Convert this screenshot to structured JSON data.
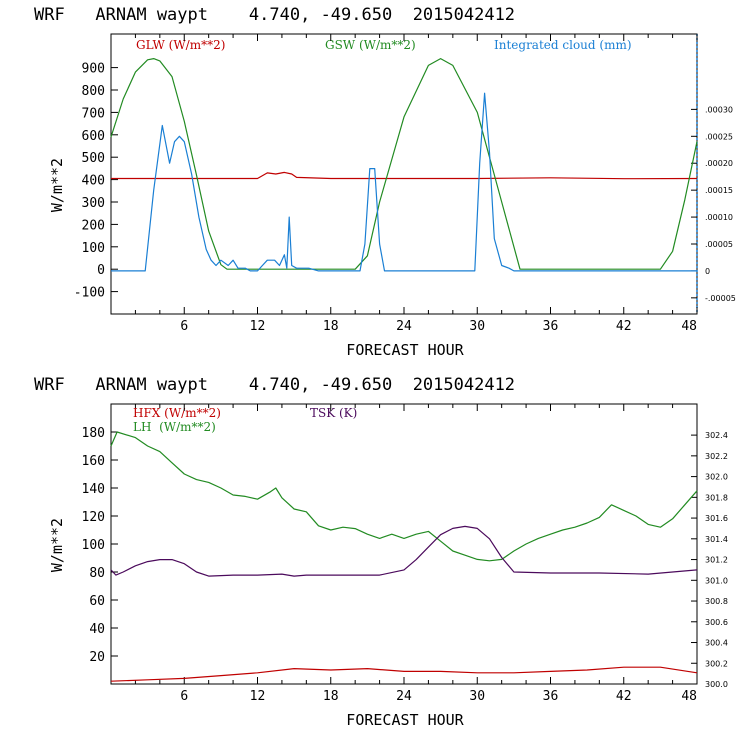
{
  "colors": {
    "red": "#c00000",
    "green": "#228b22",
    "blue": "#1a7fd4",
    "purple": "#4b0a5c"
  },
  "chart_data": [
    {
      "type": "line",
      "title": "WRF   ARNAM waypt    4.740, -49.650  2015042412",
      "xlabel": "FORECAST HOUR",
      "ylabel": "W/m**2",
      "xlim": [
        0,
        48
      ],
      "ylim": [
        -200,
        1050
      ],
      "y2lim": [
        -8e-05,
        0.00044
      ],
      "x_ticks": [
        6,
        12,
        18,
        24,
        30,
        36,
        42,
        48
      ],
      "y_ticks": [
        -100,
        0,
        100,
        200,
        300,
        400,
        500,
        600,
        700,
        800,
        900
      ],
      "y2_ticks": [
        -5e-05,
        0,
        5e-05,
        0.0001,
        0.00015,
        0.0002,
        0.00025,
        0.0003
      ],
      "y2_tick_labels": [
        "-.00005",
        "0",
        ".00005",
        ".00010",
        ".00015",
        ".00020",
        ".00025",
        ".00030"
      ],
      "series": [
        {
          "name": "GLW (W/m**2)",
          "color": "#c00000",
          "axis": "left",
          "x": [
            0,
            6,
            12,
            12.8,
            13.5,
            14.2,
            14.8,
            15.2,
            18,
            24,
            30,
            36,
            42,
            48
          ],
          "y": [
            405,
            405,
            405,
            430,
            425,
            432,
            425,
            410,
            405,
            405,
            405,
            408,
            404,
            405
          ]
        },
        {
          "name": "GSW (W/m**2)",
          "color": "#228b22",
          "axis": "left",
          "x": [
            0,
            1,
            2,
            3,
            3.5,
            4,
            5,
            6,
            7,
            8,
            9,
            9.5,
            20,
            21,
            22,
            24,
            26,
            27,
            28,
            30,
            32,
            33.5,
            45,
            46,
            47,
            48
          ],
          "y": [
            590,
            760,
            880,
            935,
            940,
            930,
            860,
            660,
            420,
            170,
            20,
            0,
            0,
            60,
            300,
            680,
            910,
            940,
            910,
            700,
            300,
            0,
            0,
            80,
            310,
            570
          ]
        },
        {
          "name": "Integrated cloud (mm)",
          "color": "#1a7fd4",
          "axis": "right",
          "x": [
            0,
            2.8,
            3.5,
            4.2,
            4.8,
            5.2,
            5.6,
            6.0,
            6.6,
            7.2,
            7.8,
            8.2,
            8.6,
            9.0,
            9.6,
            10.0,
            10.4,
            11.0,
            11.4,
            12,
            12.4,
            12.8,
            13.4,
            13.8,
            14.2,
            14.4,
            14.6,
            14.8,
            15.2,
            16.2,
            17,
            17.4,
            19,
            20.4,
            20.8,
            21.2,
            21.6,
            22.0,
            22.4,
            27.5,
            29.8,
            30.2,
            30.6,
            31.0,
            31.4,
            32.0,
            32.6,
            33,
            48
          ],
          "y": [
            0,
            0,
            0.00015,
            0.00027,
            0.0002,
            0.00024,
            0.00025,
            0.00024,
            0.00018,
            0.0001,
            4e-05,
            2e-05,
            1e-05,
            2e-05,
            1e-05,
            2e-05,
            5e-06,
            5e-06,
            0,
            0,
            1e-05,
            2e-05,
            2e-05,
            1e-05,
            3e-05,
            5e-06,
            0.0001,
            1e-05,
            5e-06,
            5e-06,
            0,
            0,
            0,
            0,
            5e-05,
            0.00019,
            0.00019,
            5e-05,
            0,
            0,
            0,
            0.0002,
            0.00033,
            0.00022,
            6e-05,
            1e-05,
            5e-06,
            0,
            0
          ]
        }
      ]
    },
    {
      "type": "line",
      "title": "WRF   ARNAM waypt    4.740, -49.650  2015042412",
      "xlabel": "FORECAST HOUR",
      "ylabel": "W/m**2",
      "xlim": [
        0,
        48
      ],
      "ylim": [
        0,
        200
      ],
      "y2lim": [
        300.0,
        302.7
      ],
      "x_ticks": [
        6,
        12,
        18,
        24,
        30,
        36,
        42,
        48
      ],
      "y_ticks": [
        20,
        40,
        60,
        80,
        100,
        120,
        140,
        160,
        180
      ],
      "y2_ticks": [
        300.0,
        300.2,
        300.4,
        300.6,
        300.8,
        301.0,
        301.2,
        301.4,
        301.6,
        301.8,
        302.0,
        302.2,
        302.4
      ],
      "y2_tick_labels": [
        "300.0",
        "300.2",
        "300.4",
        "300.6",
        "300.8",
        "301.0",
        "301.2",
        "301.4",
        "301.6",
        "301.8",
        "302.0",
        "302.2",
        "302.4"
      ],
      "series": [
        {
          "name": "HFX (W/m**2)",
          "color": "#c00000",
          "axis": "left",
          "x": [
            0,
            3,
            6,
            9,
            12,
            15,
            18,
            21,
            24,
            27,
            30,
            33,
            36,
            39,
            42,
            45,
            48
          ],
          "y": [
            2,
            3,
            4,
            6,
            8,
            11,
            10,
            11,
            9,
            9,
            8,
            8,
            9,
            10,
            12,
            12,
            8
          ]
        },
        {
          "name": "LH  (W/m**2)",
          "color": "#228b22",
          "axis": "left",
          "x": [
            0,
            0.5,
            2,
            3,
            4,
            5,
            6,
            7,
            8,
            9,
            10,
            11,
            12,
            13,
            13.5,
            14,
            15,
            16,
            17,
            18,
            19,
            20,
            21,
            22,
            23,
            24,
            25,
            26,
            27,
            28,
            29,
            30,
            31,
            32,
            33,
            34,
            35,
            36,
            37,
            38,
            39,
            40,
            41,
            42,
            43,
            44,
            45,
            46,
            47,
            48
          ],
          "y": [
            170,
            180,
            176,
            170,
            166,
            158,
            150,
            146,
            144,
            140,
            135,
            134,
            132,
            137,
            140,
            133,
            125,
            123,
            113,
            110,
            112,
            111,
            107,
            104,
            107,
            104,
            107,
            109,
            102,
            95,
            92,
            89,
            88,
            89,
            95,
            100,
            104,
            107,
            110,
            112,
            115,
            119,
            128,
            124,
            120,
            114,
            112,
            118,
            128,
            138
          ]
        },
        {
          "name": "TSK (K)",
          "color": "#4b0a5c",
          "axis": "right",
          "x": [
            0,
            0.4,
            1,
            2,
            3,
            4,
            5,
            6,
            7,
            8,
            10,
            12,
            14,
            15,
            16,
            18,
            20,
            22,
            24,
            25,
            26,
            27,
            28,
            29,
            30,
            31,
            32,
            33,
            36,
            40,
            44,
            48
          ],
          "y": [
            301.1,
            301.05,
            301.08,
            301.14,
            301.18,
            301.2,
            301.2,
            301.16,
            301.08,
            301.04,
            301.05,
            301.05,
            301.06,
            301.04,
            301.05,
            301.05,
            301.05,
            301.05,
            301.1,
            301.2,
            301.32,
            301.44,
            301.5,
            301.52,
            301.5,
            301.4,
            301.22,
            301.08,
            301.07,
            301.07,
            301.06,
            301.1
          ]
        }
      ]
    }
  ]
}
